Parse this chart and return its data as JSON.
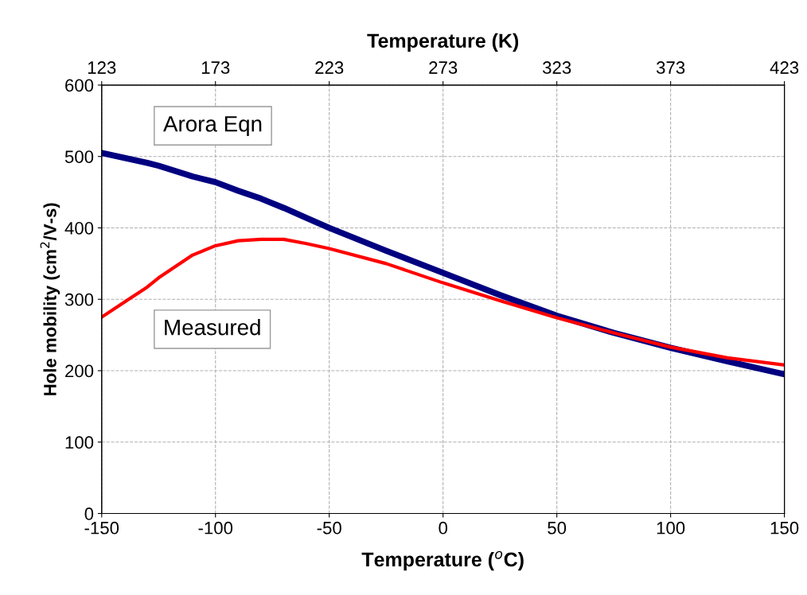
{
  "chart_data": {
    "type": "line",
    "x": [
      -150,
      -140,
      -130,
      -125,
      -110,
      -100,
      -90,
      -80,
      -70,
      -60,
      -50,
      -25,
      0,
      25,
      50,
      75,
      100,
      125,
      150
    ],
    "series": [
      {
        "name": "Arora Eqn",
        "color": "#000080",
        "values": [
          505,
          498,
          491,
          487,
          472,
          464,
          452,
          441,
          428,
          414,
          400,
          368,
          337,
          306,
          277,
          253,
          232,
          213,
          195
        ]
      },
      {
        "name": "Measured",
        "color": "#ff0000",
        "values": [
          275,
          296,
          317,
          330,
          362,
          375,
          382,
          384,
          384,
          378,
          371,
          350,
          323,
          298,
          274,
          253,
          233,
          218,
          208
        ]
      }
    ],
    "xlabel": "Temperature ($^{o}$C)",
    "ylabel": "Hole mobility (cm$^{2}$/V-s)",
    "x2label": "Temperature (K)",
    "xlim": [
      -150,
      150
    ],
    "xticks": [
      -150,
      -100,
      -50,
      0,
      50,
      100,
      150
    ],
    "ylim": [
      0,
      600
    ],
    "yticks": [
      0,
      100,
      200,
      300,
      400,
      500,
      600
    ],
    "x2lim": [
      123,
      423
    ],
    "x2ticks": [
      123,
      173,
      223,
      273,
      323,
      373,
      423
    ],
    "grid": true,
    "legend": false,
    "marker": "none",
    "line_style": "solid"
  }
}
